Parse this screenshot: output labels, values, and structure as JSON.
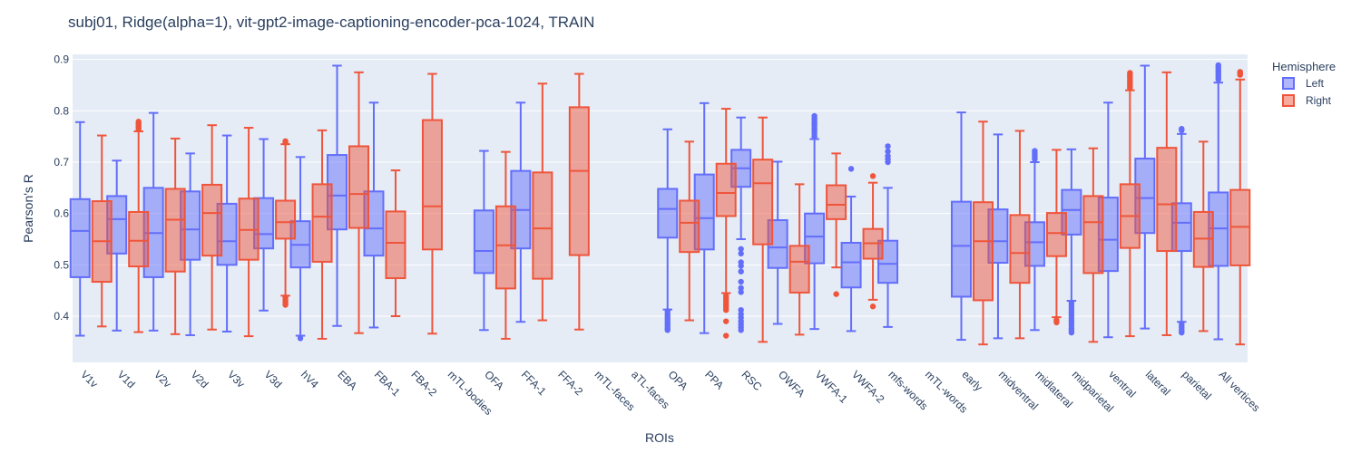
{
  "chart_data": {
    "type": "box",
    "title": "subj01, Ridge(alpha=1), vit-gpt2-image-captioning-encoder-pca-1024, TRAIN",
    "xlabel": "ROIs",
    "ylabel": "Pearson's R",
    "ylim": [
      0.31,
      0.91
    ],
    "yticks": [
      0.4,
      0.5,
      0.6,
      0.7,
      0.8,
      0.9
    ],
    "ytick_labels": [
      "0.4",
      "0.5",
      "0.6",
      "0.7",
      "0.8",
      "0.9"
    ],
    "grid": true,
    "legend": {
      "title": "Hemisphere",
      "position": "top-right"
    },
    "categories": [
      "V1v",
      "V1d",
      "V2v",
      "V2d",
      "V3v",
      "V3d",
      "hV4",
      "EBA",
      "FBA-1",
      "FBA-2",
      "mTL-bodies",
      "OFA",
      "FFA-1",
      "FFA-2",
      "mTL-faces",
      "aTL-faces",
      "OPA",
      "PPA",
      "RSC",
      "OWFA",
      "VWFA-1",
      "VWFA-2",
      "mfs-words",
      "mTL-words",
      "early",
      "midventral",
      "midlateral",
      "midparietal",
      "ventral",
      "lateral",
      "parietal",
      "All vertices"
    ],
    "series": [
      {
        "name": "Left",
        "color": "#636efa",
        "fill": "rgba(99,110,250,0.5)",
        "boxes": [
          {
            "min": 0.362,
            "q1": 0.476,
            "median": 0.566,
            "q3": 0.628,
            "max": 0.778,
            "outliers": []
          },
          {
            "min": 0.372,
            "q1": 0.522,
            "median": 0.589,
            "q3": 0.634,
            "max": 0.703,
            "outliers": []
          },
          {
            "min": 0.372,
            "q1": 0.476,
            "median": 0.562,
            "q3": 0.65,
            "max": 0.796,
            "outliers": []
          },
          {
            "min": 0.363,
            "q1": 0.51,
            "median": 0.569,
            "q3": 0.643,
            "max": 0.717,
            "outliers": []
          },
          {
            "min": 0.37,
            "q1": 0.5,
            "median": 0.546,
            "q3": 0.619,
            "max": 0.752,
            "outliers": []
          },
          {
            "min": 0.411,
            "q1": 0.532,
            "median": 0.56,
            "q3": 0.63,
            "max": 0.745,
            "outliers": []
          },
          {
            "min": 0.362,
            "q1": 0.495,
            "median": 0.539,
            "q3": 0.585,
            "max": 0.71,
            "outliers": [
              0.357
            ]
          },
          {
            "min": 0.381,
            "q1": 0.569,
            "median": 0.635,
            "q3": 0.714,
            "max": 0.888,
            "outliers": []
          },
          {
            "min": 0.378,
            "q1": 0.518,
            "median": 0.571,
            "q3": 0.643,
            "max": 0.816,
            "outliers": []
          },
          null,
          null,
          {
            "min": 0.373,
            "q1": 0.484,
            "median": 0.527,
            "q3": 0.606,
            "max": 0.722,
            "outliers": []
          },
          {
            "min": 0.389,
            "q1": 0.532,
            "median": 0.607,
            "q3": 0.683,
            "max": 0.816,
            "outliers": []
          },
          null,
          null,
          null,
          {
            "min": 0.413,
            "q1": 0.553,
            "median": 0.609,
            "q3": 0.648,
            "max": 0.764,
            "outliers": [
              0.41,
              0.405,
              0.4,
              0.396,
              0.392,
              0.388,
              0.384,
              0.38,
              0.376,
              0.373
            ]
          },
          {
            "min": 0.367,
            "q1": 0.53,
            "median": 0.591,
            "q3": 0.676,
            "max": 0.815,
            "outliers": []
          },
          {
            "min": 0.55,
            "q1": 0.652,
            "median": 0.688,
            "q3": 0.724,
            "max": 0.787,
            "outliers": [
              0.531,
              0.522,
              0.505,
              0.498,
              0.487,
              0.467,
              0.455,
              0.447,
              0.412,
              0.404,
              0.397,
              0.39,
              0.384,
              0.378,
              0.373
            ]
          },
          {
            "min": 0.385,
            "q1": 0.494,
            "median": 0.534,
            "q3": 0.587,
            "max": 0.701,
            "outliers": []
          },
          {
            "min": 0.375,
            "q1": 0.503,
            "median": 0.555,
            "q3": 0.6,
            "max": 0.745,
            "outliers": [
              0.79,
              0.786,
              0.782,
              0.778,
              0.774,
              0.77,
              0.765,
              0.76,
              0.755,
              0.75
            ]
          },
          {
            "min": 0.371,
            "q1": 0.456,
            "median": 0.505,
            "q3": 0.543,
            "max": 0.633,
            "outliers": [
              0.687
            ]
          },
          {
            "min": 0.379,
            "q1": 0.465,
            "median": 0.502,
            "q3": 0.547,
            "max": 0.65,
            "outliers": [
              0.731,
              0.721,
              0.712,
              0.706,
              0.7
            ]
          },
          null,
          {
            "min": 0.354,
            "q1": 0.438,
            "median": 0.537,
            "q3": 0.623,
            "max": 0.797,
            "outliers": []
          },
          {
            "min": 0.357,
            "q1": 0.504,
            "median": 0.546,
            "q3": 0.608,
            "max": 0.754,
            "outliers": []
          },
          {
            "min": 0.373,
            "q1": 0.498,
            "median": 0.544,
            "q3": 0.583,
            "max": 0.7,
            "outliers": [
              0.722,
              0.718,
              0.714,
              0.71,
              0.706
            ]
          },
          {
            "min": 0.43,
            "q1": 0.559,
            "median": 0.607,
            "q3": 0.646,
            "max": 0.725,
            "outliers": [
              0.426,
              0.421,
              0.416,
              0.411,
              0.406,
              0.401,
              0.396,
              0.391,
              0.386,
              0.381,
              0.376,
              0.372,
              0.368
            ]
          },
          {
            "min": 0.359,
            "q1": 0.488,
            "median": 0.549,
            "q3": 0.631,
            "max": 0.816,
            "outliers": []
          },
          {
            "min": 0.376,
            "q1": 0.562,
            "median": 0.63,
            "q3": 0.707,
            "max": 0.888,
            "outliers": []
          },
          {
            "min": 0.389,
            "q1": 0.527,
            "median": 0.582,
            "q3": 0.62,
            "max": 0.755,
            "outliers": [
              0.765,
              0.762,
              0.386,
              0.382,
              0.378,
              0.374,
              0.371,
              0.368
            ]
          },
          {
            "min": 0.355,
            "q1": 0.498,
            "median": 0.571,
            "q3": 0.641,
            "max": 0.855,
            "outliers": [
              0.889,
              0.885,
              0.881,
              0.877,
              0.873,
              0.869,
              0.865,
              0.861
            ]
          }
        ]
      },
      {
        "name": "Right",
        "color": "#ef553b",
        "fill": "rgba(239,85,59,0.5)",
        "boxes": [
          {
            "min": 0.38,
            "q1": 0.467,
            "median": 0.546,
            "q3": 0.624,
            "max": 0.752,
            "outliers": []
          },
          {
            "min": 0.369,
            "q1": 0.497,
            "median": 0.547,
            "q3": 0.603,
            "max": 0.76,
            "outliers": [
              0.779,
              0.776,
              0.773,
              0.77,
              0.767,
              0.764
            ]
          },
          {
            "min": 0.365,
            "q1": 0.487,
            "median": 0.588,
            "q3": 0.648,
            "max": 0.746,
            "outliers": []
          },
          {
            "min": 0.374,
            "q1": 0.518,
            "median": 0.601,
            "q3": 0.656,
            "max": 0.772,
            "outliers": []
          },
          {
            "min": 0.361,
            "q1": 0.51,
            "median": 0.568,
            "q3": 0.629,
            "max": 0.767,
            "outliers": []
          },
          {
            "min": 0.44,
            "q1": 0.551,
            "median": 0.583,
            "q3": 0.625,
            "max": 0.735,
            "outliers": [
              0.741,
              0.738,
              0.437,
              0.433,
              0.429,
              0.425,
              0.422
            ]
          },
          {
            "min": 0.356,
            "q1": 0.506,
            "median": 0.594,
            "q3": 0.657,
            "max": 0.762,
            "outliers": []
          },
          {
            "min": 0.367,
            "q1": 0.572,
            "median": 0.638,
            "q3": 0.731,
            "max": 0.875,
            "outliers": []
          },
          {
            "min": 0.4,
            "q1": 0.474,
            "median": 0.543,
            "q3": 0.604,
            "max": 0.684,
            "outliers": []
          },
          {
            "min": 0.366,
            "q1": 0.53,
            "median": 0.614,
            "q3": 0.782,
            "max": 0.872,
            "outliers": []
          },
          null,
          {
            "min": 0.356,
            "q1": 0.454,
            "median": 0.538,
            "q3": 0.614,
            "max": 0.72,
            "outliers": []
          },
          {
            "min": 0.392,
            "q1": 0.473,
            "median": 0.571,
            "q3": 0.68,
            "max": 0.853,
            "outliers": []
          },
          {
            "min": 0.374,
            "q1": 0.519,
            "median": 0.683,
            "q3": 0.807,
            "max": 0.872,
            "outliers": []
          },
          null,
          null,
          {
            "min": 0.392,
            "q1": 0.525,
            "median": 0.582,
            "q3": 0.625,
            "max": 0.74,
            "outliers": []
          },
          {
            "min": 0.445,
            "q1": 0.595,
            "median": 0.64,
            "q3": 0.697,
            "max": 0.804,
            "outliers": [
              0.44,
              0.436,
              0.432,
              0.428,
              0.424,
              0.42,
              0.416,
              0.412,
              0.39,
              0.362
            ]
          },
          {
            "min": 0.35,
            "q1": 0.54,
            "median": 0.659,
            "q3": 0.705,
            "max": 0.787,
            "outliers": []
          },
          {
            "min": 0.364,
            "q1": 0.446,
            "median": 0.506,
            "q3": 0.537,
            "max": 0.657,
            "outliers": []
          },
          {
            "min": 0.495,
            "q1": 0.589,
            "median": 0.617,
            "q3": 0.655,
            "max": 0.717,
            "outliers": [
              0.443
            ]
          },
          {
            "min": 0.432,
            "q1": 0.512,
            "median": 0.542,
            "q3": 0.57,
            "max": 0.66,
            "outliers": [
              0.673,
              0.419
            ]
          },
          null,
          null,
          {
            "min": 0.345,
            "q1": 0.431,
            "median": 0.546,
            "q3": 0.622,
            "max": 0.779,
            "outliers": []
          },
          {
            "min": 0.357,
            "q1": 0.465,
            "median": 0.523,
            "q3": 0.597,
            "max": 0.761,
            "outliers": []
          },
          {
            "min": 0.398,
            "q1": 0.517,
            "median": 0.562,
            "q3": 0.601,
            "max": 0.724,
            "outliers": [
              0.392,
              0.388
            ]
          },
          {
            "min": 0.35,
            "q1": 0.484,
            "median": 0.583,
            "q3": 0.634,
            "max": 0.727,
            "outliers": []
          },
          {
            "min": 0.361,
            "q1": 0.533,
            "median": 0.595,
            "q3": 0.657,
            "max": 0.84,
            "outliers": [
              0.874,
              0.871,
              0.868,
              0.865,
              0.862,
              0.859,
              0.856,
              0.853,
              0.85,
              0.847,
              0.844
            ]
          },
          {
            "min": 0.363,
            "q1": 0.527,
            "median": 0.618,
            "q3": 0.728,
            "max": 0.875,
            "outliers": []
          },
          {
            "min": 0.371,
            "q1": 0.496,
            "median": 0.551,
            "q3": 0.603,
            "max": 0.74,
            "outliers": []
          },
          {
            "min": 0.345,
            "q1": 0.499,
            "median": 0.574,
            "q3": 0.646,
            "max": 0.861,
            "outliers": [
              0.876,
              0.873,
              0.87
            ]
          }
        ]
      }
    ]
  }
}
